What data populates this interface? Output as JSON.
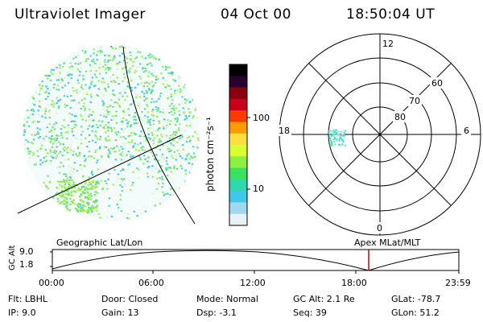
{
  "header": {
    "title": "Ultraviolet Imager",
    "date": "04 Oct 00",
    "time": "18:50:04 UT"
  },
  "colorbar": {
    "label": "photon cm⁻²s⁻¹",
    "ticks": [
      "100",
      "10"
    ],
    "colors": [
      "#000000",
      "#2a0030",
      "#8a0010",
      "#c8001a",
      "#ff3a00",
      "#ff9a00",
      "#ffe040",
      "#d8ff30",
      "#8cf040",
      "#3ce060",
      "#30d8b0",
      "#40c8e8",
      "#a0d8f0",
      "#e8f0f8"
    ]
  },
  "polar_plot": {
    "mlt_labels": [
      "12",
      "18",
      "6",
      "0"
    ],
    "lat_labels": [
      "60",
      "70",
      "80"
    ]
  },
  "timeline": {
    "left_label": "Geographic Lat/Lon",
    "right_label": "Apex  MLat/MLT",
    "y_axis_label": "GC Alt",
    "y_ticks": [
      "9.0",
      "1.8"
    ],
    "x_ticks": [
      "00:00",
      "06:00",
      "12:00",
      "18:00",
      "23:59"
    ],
    "marker_color": "#cc0000"
  },
  "info": {
    "flt": "Flt: LBHL",
    "ip": "IP:  9.0",
    "door": "Door: Closed",
    "gain": "Gain: 13",
    "mode": "Mode: Normal",
    "dsp": "Dsp:     -3.1",
    "gcalt": "GC Alt: 2.1 Re",
    "seq": "Seq: 39",
    "glat": "GLat: -78.7",
    "glon": "GLon:  51.2"
  }
}
